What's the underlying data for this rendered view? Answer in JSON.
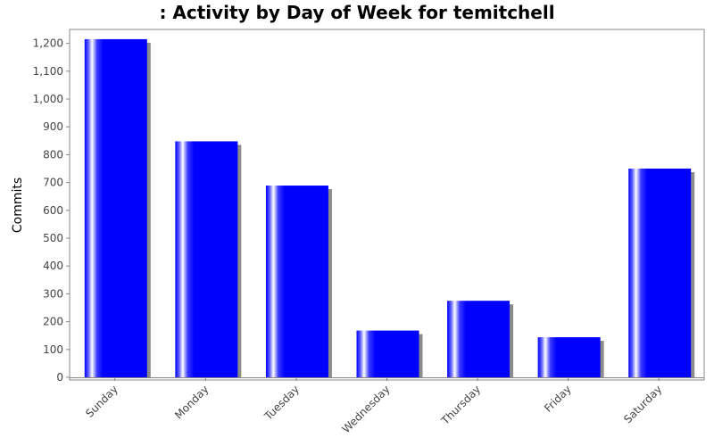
{
  "chart_data": {
    "type": "bar",
    "title": ": Activity by Day of Week for temitchell",
    "xlabel": "",
    "ylabel": "Commits",
    "categories": [
      "Sunday",
      "Monday",
      "Tuesday",
      "Wednesday",
      "Thursday",
      "Friday",
      "Saturday"
    ],
    "values": [
      1215,
      848,
      689,
      168,
      275,
      144,
      750
    ],
    "ylim": [
      0,
      1250
    ],
    "yticks": [
      0,
      100,
      200,
      300,
      400,
      500,
      600,
      700,
      800,
      900,
      1000,
      1100,
      1200
    ],
    "ytick_labels": [
      "0",
      "100",
      "200",
      "300",
      "400",
      "500",
      "600",
      "700",
      "800",
      "900",
      "1,000",
      "1,100",
      "1,200"
    ],
    "grid": false,
    "legend": "none",
    "bar_color": "#0000ff",
    "shadow_color": "#8c8c8c"
  }
}
